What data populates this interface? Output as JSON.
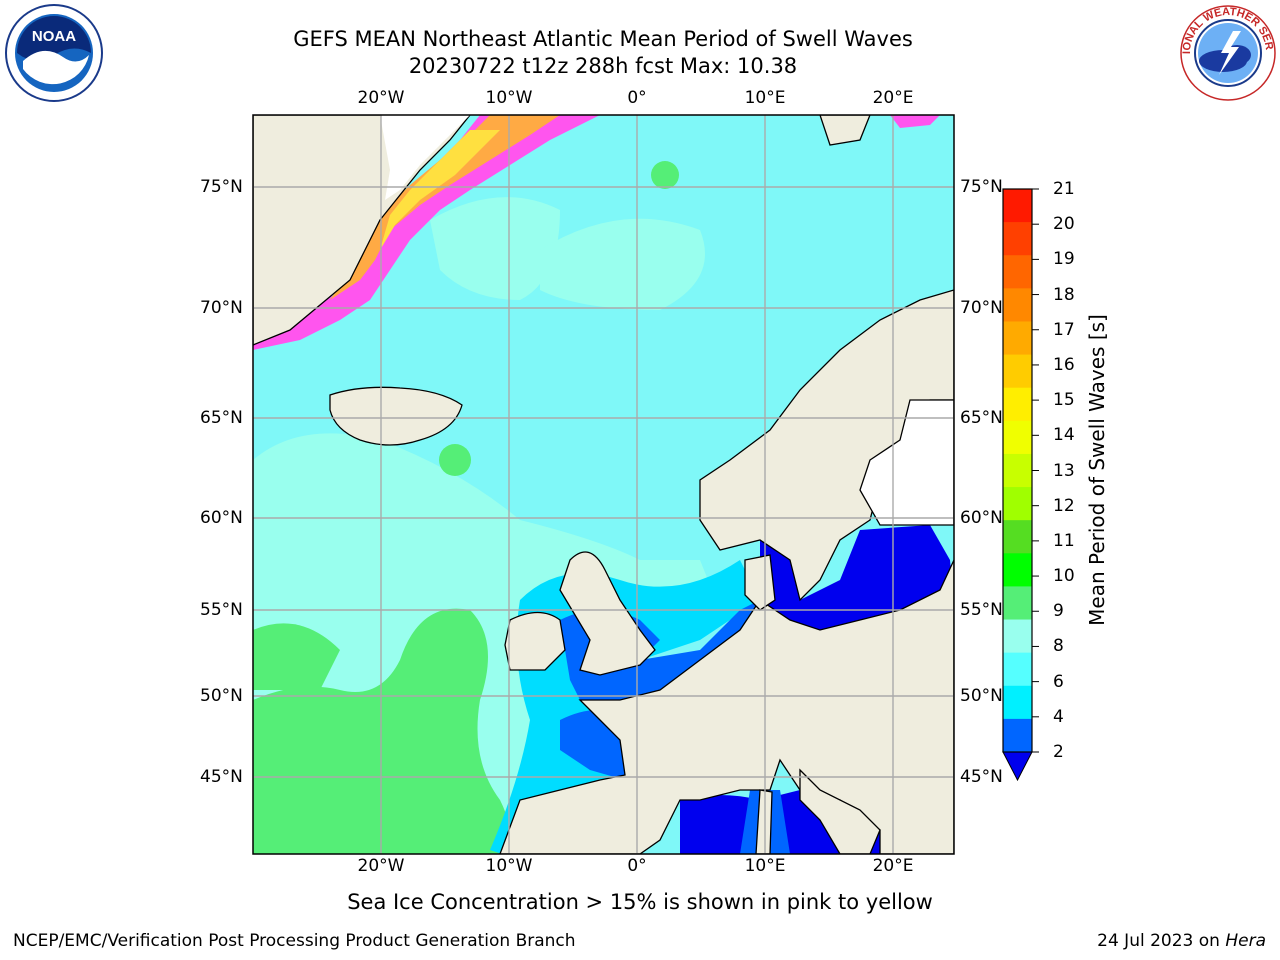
{
  "title": {
    "line1": "GEFS MEAN Northeast Atlantic Mean Period of Swell Waves",
    "line2": "20230722 t12z 288h fcst   Max: 10.38"
  },
  "map": {
    "lon_labels": [
      "20°W",
      "10°W",
      "0°",
      "10°E",
      "20°E"
    ],
    "lat_labels": [
      "75°N",
      "70°N",
      "65°N",
      "60°N",
      "55°N",
      "50°N",
      "45°N"
    ],
    "ocean_base_color": "#7ff8f8",
    "land_color": "#efedde",
    "ice_colors": [
      "#ff55ee",
      "#ffaa44",
      "#ffe040"
    ],
    "places": [
      "Greenland",
      "Iceland",
      "British Isles",
      "Scandinavia",
      "Iberia",
      "Italy"
    ]
  },
  "colorbar": {
    "label": "Mean Period of Swell Waves [s]",
    "ticks": [
      "21",
      "20",
      "19",
      "18",
      "17",
      "16",
      "15",
      "14",
      "13",
      "12",
      "11",
      "10",
      "9",
      "8",
      "6",
      "4",
      "2"
    ],
    "colors_top_to_bottom": [
      "#ff1a00",
      "#ff4000",
      "#ff6600",
      "#ff8800",
      "#ffaa00",
      "#ffcc00",
      "#ffee00",
      "#f0ff00",
      "#c8ff00",
      "#a0ff00",
      "#55dd22",
      "#00ff00",
      "#55ee77",
      "#99ffee",
      "#55ffff",
      "#00f0ff",
      "#0066ff"
    ],
    "extend_color": "#0000ee"
  },
  "note": "Sea Ice Concentration > 15% is shown in pink to yellow",
  "footer": {
    "credit": "NCEP/EMC/Verification Post Processing Product Generation Branch",
    "date_prefix": "24 Jul 2023 on ",
    "date_host": "Hera"
  },
  "logos": {
    "noaa_text": "NOAA",
    "nws_text": "NATIONAL WEATHER SERVICE"
  }
}
